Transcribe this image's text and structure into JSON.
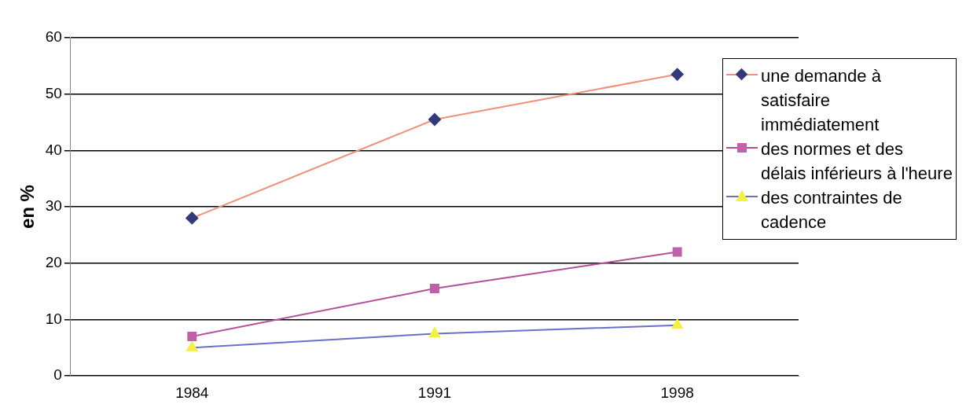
{
  "chart_data": {
    "type": "line",
    "ylabel": "en %",
    "categories": [
      "1984",
      "1991",
      "1998"
    ],
    "ylim": [
      0,
      60
    ],
    "yticks": [
      0,
      10,
      20,
      30,
      40,
      50,
      60
    ],
    "grid": "y",
    "legend": "right",
    "series": [
      {
        "name": "une demande à satisfaire immédiatement",
        "color": "#f0907a",
        "colors": [
          "#333a7a",
          "#333a7a",
          "#333a7a"
        ],
        "marker": "diamond",
        "values": [
          28,
          45.5,
          53.5
        ]
      },
      {
        "name": "des normes et des délais inférieurs à l'heure",
        "color": "#b4509a",
        "colors": [
          "#c060a8",
          "#c060a8",
          "#c060a8"
        ],
        "marker": "square",
        "values": [
          7,
          15.5,
          22
        ]
      },
      {
        "name": "des contraintes de cadence",
        "color": "#6a70c8",
        "colors": [
          "#f2f040",
          "#f2f040",
          "#f2f040"
        ],
        "marker": "triangle",
        "values": [
          5,
          7.5,
          9
        ]
      }
    ]
  }
}
